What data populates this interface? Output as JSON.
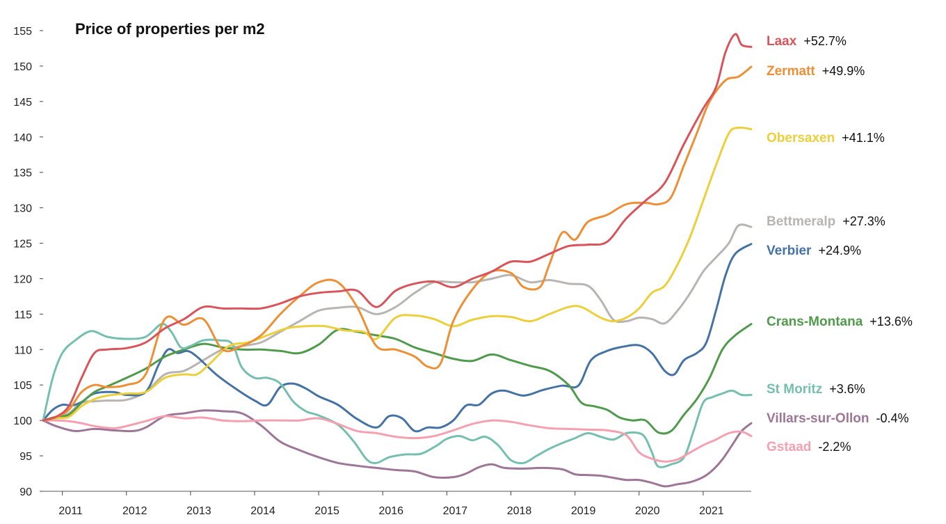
{
  "chart_data": {
    "type": "line",
    "title": "Price of properties per m2",
    "xlabel": "",
    "ylabel": "",
    "ylim": [
      90,
      155
    ],
    "yticks": [
      90,
      95,
      100,
      105,
      110,
      115,
      120,
      125,
      130,
      135,
      140,
      145,
      150,
      155
    ],
    "xlim": [
      2010.7,
      2021.75
    ],
    "xticks": [
      "2011",
      "2012",
      "2013",
      "2014",
      "2015",
      "2016",
      "2017",
      "2018",
      "2019",
      "2020",
      "2021"
    ],
    "grid": false,
    "legend": "right end labels",
    "series": [
      {
        "name": "Laax",
        "change": "+52.7%",
        "color": "#d9545a",
        "x": [
          2010.7,
          2010.9,
          2011.1,
          2011.3,
          2011.5,
          2011.7,
          2012.0,
          2012.3,
          2012.6,
          2012.9,
          2013.2,
          2013.5,
          2013.8,
          2014.1,
          2014.4,
          2014.7,
          2015.0,
          2015.3,
          2015.6,
          2015.9,
          2016.2,
          2016.5,
          2016.8,
          2017.1,
          2017.4,
          2017.7,
          2018.0,
          2018.3,
          2018.6,
          2018.9,
          2019.2,
          2019.5,
          2019.8,
          2020.1,
          2020.4,
          2020.7,
          2021.0,
          2021.2,
          2021.35,
          2021.5,
          2021.6,
          2021.75
        ],
        "y": [
          100,
          100.5,
          102,
          106,
          109.5,
          110,
          110.2,
          111,
          113,
          114.3,
          116,
          115.8,
          115.8,
          115.8,
          116.5,
          117.5,
          118,
          118.2,
          118.3,
          116,
          118.3,
          119.3,
          119.6,
          118.8,
          120,
          121,
          122.4,
          122.4,
          123.5,
          124.6,
          124.8,
          125.2,
          128.5,
          131,
          133.5,
          139,
          144,
          147,
          152,
          154.5,
          153,
          152.7
        ]
      },
      {
        "name": "Zermatt",
        "change": "+49.9%",
        "color": "#ee8f35",
        "x": [
          2010.7,
          2010.9,
          2011.1,
          2011.3,
          2011.5,
          2011.7,
          2012.0,
          2012.3,
          2012.6,
          2012.9,
          2013.2,
          2013.5,
          2013.8,
          2014.1,
          2014.4,
          2014.7,
          2015.0,
          2015.3,
          2015.6,
          2015.9,
          2016.2,
          2016.5,
          2016.7,
          2016.9,
          2017.1,
          2017.4,
          2017.7,
          2018.0,
          2018.2,
          2018.45,
          2018.6,
          2018.8,
          2019.0,
          2019.2,
          2019.5,
          2019.8,
          2020.1,
          2020.3,
          2020.5,
          2020.7,
          2020.9,
          2021.1,
          2021.35,
          2021.55,
          2021.75
        ],
        "y": [
          100,
          100.5,
          101.5,
          104,
          105,
          104.7,
          105,
          106.5,
          114.3,
          113.5,
          114.3,
          110,
          110.5,
          112,
          115,
          117.5,
          119.5,
          119.5,
          116,
          110.5,
          110,
          109,
          107.6,
          108,
          114,
          118.5,
          121,
          120.8,
          118.8,
          118.8,
          122,
          126.5,
          125.5,
          128,
          129,
          130.5,
          130.7,
          130.5,
          131.5,
          136,
          140.5,
          145,
          148,
          148.5,
          149.9
        ]
      },
      {
        "name": "Obersaxen",
        "change": "+41.1%",
        "color": "#eccf3a",
        "x": [
          2010.7,
          2010.9,
          2011.1,
          2011.3,
          2011.5,
          2011.7,
          2012.0,
          2012.3,
          2012.6,
          2012.9,
          2013.1,
          2013.3,
          2013.6,
          2013.9,
          2014.2,
          2014.5,
          2014.8,
          2015.1,
          2015.4,
          2015.7,
          2015.9,
          2016.2,
          2016.5,
          2016.8,
          2017.1,
          2017.4,
          2017.7,
          2018.0,
          2018.3,
          2018.6,
          2018.9,
          2019.1,
          2019.4,
          2019.6,
          2019.8,
          2020.0,
          2020.2,
          2020.4,
          2020.6,
          2020.8,
          2021.0,
          2021.2,
          2021.4,
          2021.55,
          2021.75
        ],
        "y": [
          100,
          100.3,
          100.5,
          102,
          103,
          103.5,
          103.8,
          104,
          106,
          106.5,
          106.5,
          108,
          110.5,
          111,
          112,
          113,
          113.3,
          113.3,
          112.7,
          112.5,
          111.5,
          114.5,
          114.8,
          114.3,
          113.3,
          114.2,
          114.7,
          114.6,
          114,
          115,
          116,
          116,
          114.5,
          114,
          114.5,
          115.8,
          118,
          119,
          122,
          126,
          131,
          136,
          140.5,
          141.3,
          141.1
        ]
      },
      {
        "name": "Bettmeralp",
        "change": "+27.3%",
        "color": "#b8b4b1",
        "x": [
          2010.7,
          2010.9,
          2011.1,
          2011.3,
          2011.5,
          2011.7,
          2012.0,
          2012.3,
          2012.6,
          2012.9,
          2013.2,
          2013.5,
          2013.8,
          2014.1,
          2014.4,
          2014.7,
          2015.0,
          2015.3,
          2015.6,
          2015.9,
          2016.2,
          2016.5,
          2016.8,
          2017.1,
          2017.4,
          2017.7,
          2018.0,
          2018.3,
          2018.6,
          2018.9,
          2019.2,
          2019.4,
          2019.6,
          2019.8,
          2020.0,
          2020.2,
          2020.4,
          2020.6,
          2020.8,
          2021.0,
          2021.2,
          2021.4,
          2021.55,
          2021.75
        ],
        "y": [
          100,
          100.5,
          101,
          102.5,
          102.7,
          102.8,
          102.9,
          104,
          106.5,
          107,
          108.5,
          110,
          110.5,
          111,
          112.5,
          114,
          115.5,
          115.9,
          116,
          115,
          116,
          118,
          119.5,
          119.5,
          119.5,
          120,
          120.5,
          119.5,
          119.8,
          119.3,
          119,
          117,
          114.2,
          114,
          114.5,
          114.3,
          113.7,
          115.5,
          118,
          121,
          123,
          125,
          127.5,
          127.3
        ]
      },
      {
        "name": "Verbier",
        "change": "+24.9%",
        "color": "#4472a5",
        "x": [
          2010.7,
          2010.85,
          2011.0,
          2011.15,
          2011.3,
          2011.5,
          2011.8,
          2012.0,
          2012.3,
          2012.5,
          2012.65,
          2012.8,
          2012.95,
          2013.1,
          2013.4,
          2013.7,
          2014.0,
          2014.2,
          2014.4,
          2014.6,
          2014.8,
          2015.0,
          2015.3,
          2015.6,
          2015.9,
          2016.1,
          2016.3,
          2016.5,
          2016.7,
          2016.9,
          2017.1,
          2017.3,
          2017.5,
          2017.7,
          2017.9,
          2018.2,
          2018.5,
          2018.8,
          2019.05,
          2019.25,
          2019.5,
          2019.75,
          2020.0,
          2020.2,
          2020.4,
          2020.55,
          2020.7,
          2020.9,
          2021.05,
          2021.2,
          2021.35,
          2021.5,
          2021.75
        ],
        "y": [
          100,
          101.5,
          102.2,
          102.1,
          102.6,
          103.8,
          104,
          103.6,
          104,
          107.8,
          110,
          109.5,
          109.8,
          109,
          106.5,
          104.5,
          102.8,
          102.2,
          104.7,
          105.2,
          104.5,
          103.4,
          102.2,
          100.2,
          99,
          100.6,
          100.3,
          98.5,
          99,
          99,
          100,
          102.1,
          102.2,
          103.8,
          104.2,
          103.5,
          104.3,
          104.9,
          104.9,
          108.5,
          109.8,
          110.4,
          110.6,
          109.5,
          107,
          106.5,
          108.5,
          109.5,
          111,
          115.5,
          120.5,
          123.5,
          124.9
        ]
      },
      {
        "name": "Crans-Montana",
        "change": "+13.6%",
        "color": "#4f9a4b",
        "x": [
          2010.7,
          2010.9,
          2011.1,
          2011.3,
          2011.5,
          2011.7,
          2012.0,
          2012.3,
          2012.6,
          2012.9,
          2013.2,
          2013.5,
          2013.8,
          2014.1,
          2014.4,
          2014.7,
          2015.0,
          2015.3,
          2015.6,
          2015.9,
          2016.2,
          2016.5,
          2016.8,
          2017.1,
          2017.4,
          2017.7,
          2018.0,
          2018.3,
          2018.6,
          2018.9,
          2019.1,
          2019.3,
          2019.5,
          2019.7,
          2019.9,
          2020.1,
          2020.3,
          2020.5,
          2020.7,
          2020.9,
          2021.1,
          2021.3,
          2021.5,
          2021.75
        ],
        "y": [
          100,
          100.5,
          100.8,
          102.5,
          104,
          104.8,
          106,
          107.3,
          109,
          110,
          110.8,
          110.3,
          110,
          110,
          109.8,
          109.5,
          110.7,
          112.8,
          112.5,
          112,
          111.5,
          110.3,
          109.5,
          108.7,
          108.4,
          109.3,
          108.5,
          107.7,
          107,
          105,
          102.5,
          102,
          101.5,
          100.4,
          100,
          100,
          98.3,
          98.5,
          100.8,
          103,
          106,
          110,
          112,
          113.6
        ]
      },
      {
        "name": "St Moritz",
        "change": "+3.6%",
        "color": "#74bfae",
        "x": [
          2010.7,
          2010.85,
          2011.0,
          2011.2,
          2011.45,
          2011.7,
          2012.0,
          2012.3,
          2012.55,
          2012.7,
          2012.85,
          2013.0,
          2013.2,
          2013.45,
          2013.65,
          2013.8,
          2014.0,
          2014.2,
          2014.4,
          2014.6,
          2014.8,
          2015.0,
          2015.3,
          2015.55,
          2015.75,
          2015.9,
          2016.1,
          2016.35,
          2016.6,
          2016.85,
          2017.0,
          2017.2,
          2017.4,
          2017.6,
          2017.8,
          2018.0,
          2018.2,
          2018.4,
          2018.6,
          2018.8,
          2019.0,
          2019.2,
          2019.4,
          2019.6,
          2019.8,
          2020.0,
          2020.1,
          2020.2,
          2020.3,
          2020.5,
          2020.7,
          2020.85,
          2021.0,
          2021.15,
          2021.3,
          2021.45,
          2021.6,
          2021.75
        ],
        "y": [
          100,
          106,
          109.5,
          111.3,
          112.6,
          111.8,
          111.5,
          111.8,
          113.6,
          112.5,
          110.3,
          110.5,
          111.3,
          111.3,
          110.8,
          107.5,
          106,
          106,
          105.2,
          102.7,
          101.3,
          100.7,
          99.4,
          97,
          94.5,
          94,
          94.8,
          95.2,
          95.3,
          96.5,
          97.4,
          97.8,
          97.2,
          97.7,
          96.5,
          94.4,
          94,
          95,
          96,
          96.8,
          97.5,
          98.2,
          97.7,
          97.3,
          98.2,
          98.2,
          97.5,
          95.5,
          93.5,
          93.8,
          94.8,
          98.5,
          102.5,
          103.3,
          103.8,
          104.2,
          103.6,
          103.6
        ]
      },
      {
        "name": "Villars-sur-Ollon",
        "change": "-0.4%",
        "color": "#9d7597",
        "x": [
          2010.7,
          2010.9,
          2011.2,
          2011.5,
          2011.8,
          2012.1,
          2012.3,
          2012.6,
          2012.9,
          2013.2,
          2013.5,
          2013.8,
          2014.1,
          2014.4,
          2014.7,
          2015.0,
          2015.3,
          2015.6,
          2015.9,
          2016.2,
          2016.5,
          2016.8,
          2017.1,
          2017.3,
          2017.5,
          2017.7,
          2017.9,
          2018.2,
          2018.5,
          2018.8,
          2019.0,
          2019.2,
          2019.4,
          2019.6,
          2019.8,
          2020.0,
          2020.2,
          2020.4,
          2020.6,
          2020.8,
          2021.0,
          2021.15,
          2021.3,
          2021.45,
          2021.6,
          2021.75
        ],
        "y": [
          100,
          99.2,
          98.5,
          98.8,
          98.6,
          98.5,
          99,
          100.6,
          101,
          101.4,
          101.3,
          101,
          99.3,
          97,
          95.8,
          94.8,
          94,
          93.6,
          93.3,
          93,
          92.8,
          92,
          92,
          92.5,
          93.4,
          93.8,
          93.3,
          93.2,
          93.3,
          93.1,
          92.4,
          92.3,
          92.2,
          91.9,
          91.6,
          91.6,
          91.2,
          90.7,
          91,
          91.3,
          92,
          93,
          94.5,
          96.5,
          98.5,
          99.6
        ]
      },
      {
        "name": "Gstaad",
        "change": "-2.2%",
        "color": "#f5a0b0",
        "x": [
          2010.7,
          2010.9,
          2011.1,
          2011.3,
          2011.5,
          2011.8,
          2012.0,
          2012.3,
          2012.6,
          2012.9,
          2013.2,
          2013.5,
          2013.8,
          2014.1,
          2014.4,
          2014.7,
          2015.0,
          2015.3,
          2015.6,
          2015.9,
          2016.2,
          2016.5,
          2016.8,
          2017.1,
          2017.4,
          2017.7,
          2018.0,
          2018.3,
          2018.6,
          2018.9,
          2019.2,
          2019.5,
          2019.8,
          2020.0,
          2020.2,
          2020.4,
          2020.6,
          2020.8,
          2021.0,
          2021.2,
          2021.4,
          2021.6,
          2021.75
        ],
        "y": [
          100,
          100,
          99.9,
          99.6,
          99.2,
          98.9,
          99.2,
          99.9,
          100.6,
          100.3,
          100.4,
          100,
          99.9,
          100,
          100,
          100,
          100.3,
          99.5,
          98.5,
          98.2,
          97.7,
          97.5,
          97.8,
          98.6,
          99.5,
          100,
          99.8,
          99.3,
          98.9,
          98.8,
          98.7,
          98.6,
          97.9,
          95.5,
          94.6,
          94.2,
          94.5,
          95.5,
          96.5,
          97.3,
          98.2,
          98.4,
          97.8
        ]
      }
    ]
  }
}
